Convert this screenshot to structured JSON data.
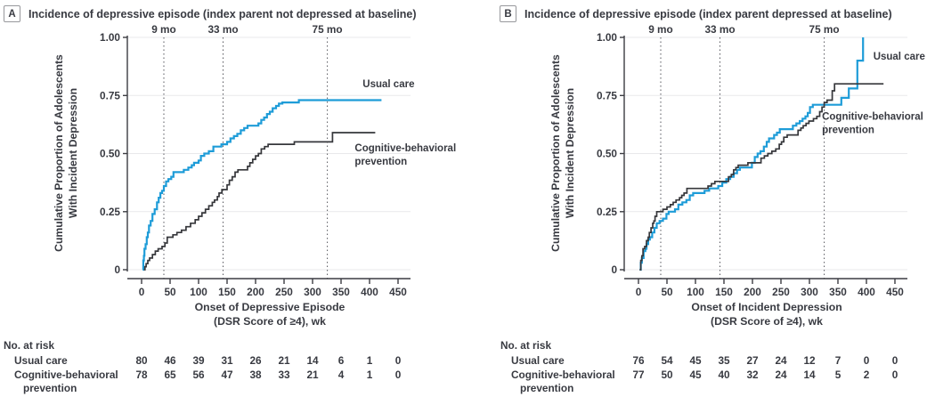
{
  "figure": {
    "text_color": "#383a41",
    "axis_color": "#3b3c42",
    "grid_color": "#e9e9eb",
    "milestone_line_color": "#55565c",
    "usual_care_color": "#1e9cd8",
    "prevention_color": "#36373b"
  },
  "chart_data": [
    {
      "type": "line",
      "panel_label": "A",
      "title": "Incidence of depressive episode (index parent not depressed at baseline)",
      "ylabel_lines": [
        "Cumulative Proportion of Adolescents",
        "With Incident Depression"
      ],
      "xlabel_lines": [
        "Onset of Depressive Episode",
        "(DSR Score of ≥4), wk"
      ],
      "xlim": [
        0,
        450
      ],
      "ylim": [
        0,
        1.0
      ],
      "grid": true,
      "legend_position": "inline-right",
      "xticks": [
        0,
        50,
        100,
        150,
        200,
        250,
        300,
        350,
        400,
        450
      ],
      "ytick_values": [
        0,
        0.25,
        0.5,
        0.75,
        1.0
      ],
      "ytick_labels": [
        "0",
        "0.25",
        "0.50",
        "0.75",
        "1.00"
      ],
      "milestones": [
        {
          "label": "9 mo",
          "week": 39
        },
        {
          "label": "33 mo",
          "week": 143
        },
        {
          "label": "75 mo",
          "week": 326
        }
      ],
      "series": [
        {
          "name": "Usual care",
          "color": "#1e9cd8",
          "label_lines": [
            "Usual care"
          ],
          "label_anchor": {
            "week": 388,
            "prop": 0.785
          },
          "steps": [
            [
              2,
              0
            ],
            [
              3,
              0.04
            ],
            [
              4,
              0.06
            ],
            [
              5,
              0.09
            ],
            [
              7,
              0.11
            ],
            [
              9,
              0.14
            ],
            [
              11,
              0.16
            ],
            [
              13,
              0.19
            ],
            [
              16,
              0.21
            ],
            [
              19,
              0.24
            ],
            [
              23,
              0.26
            ],
            [
              27,
              0.29
            ],
            [
              30,
              0.31
            ],
            [
              33,
              0.33
            ],
            [
              36,
              0.34
            ],
            [
              39,
              0.36
            ],
            [
              43,
              0.38
            ],
            [
              47,
              0.39
            ],
            [
              52,
              0.4
            ],
            [
              56,
              0.42
            ],
            [
              74,
              0.43
            ],
            [
              82,
              0.44
            ],
            [
              88,
              0.45
            ],
            [
              92,
              0.46
            ],
            [
              100,
              0.47
            ],
            [
              104,
              0.49
            ],
            [
              110,
              0.5
            ],
            [
              118,
              0.51
            ],
            [
              126,
              0.53
            ],
            [
              140,
              0.54
            ],
            [
              150,
              0.55
            ],
            [
              156,
              0.565
            ],
            [
              162,
              0.575
            ],
            [
              168,
              0.585
            ],
            [
              174,
              0.6
            ],
            [
              180,
              0.61
            ],
            [
              186,
              0.62
            ],
            [
              205,
              0.63
            ],
            [
              210,
              0.645
            ],
            [
              215,
              0.655
            ],
            [
              220,
              0.67
            ],
            [
              225,
              0.68
            ],
            [
              230,
              0.695
            ],
            [
              236,
              0.705
            ],
            [
              241,
              0.715
            ],
            [
              247,
              0.72
            ],
            [
              276,
              0.73
            ],
            [
              421,
              0.73
            ]
          ]
        },
        {
          "name": "Cognitive-behavioral prevention",
          "color": "#36373b",
          "label_lines": [
            "Cognitive-behavioral",
            "prevention"
          ],
          "label_anchor": {
            "week": 374,
            "prop": 0.51
          },
          "steps": [
            [
              4,
              0
            ],
            [
              6,
              0.013
            ],
            [
              8,
              0.026
            ],
            [
              11,
              0.04
            ],
            [
              14,
              0.05
            ],
            [
              19,
              0.065
            ],
            [
              24,
              0.08
            ],
            [
              29,
              0.09
            ],
            [
              36,
              0.1
            ],
            [
              41,
              0.115
            ],
            [
              45,
              0.14
            ],
            [
              55,
              0.15
            ],
            [
              62,
              0.16
            ],
            [
              70,
              0.17
            ],
            [
              78,
              0.185
            ],
            [
              86,
              0.2
            ],
            [
              94,
              0.215
            ],
            [
              100,
              0.23
            ],
            [
              106,
              0.245
            ],
            [
              112,
              0.26
            ],
            [
              118,
              0.275
            ],
            [
              124,
              0.29
            ],
            [
              128,
              0.3
            ],
            [
              133,
              0.315
            ],
            [
              136,
              0.33
            ],
            [
              141,
              0.345
            ],
            [
              150,
              0.365
            ],
            [
              154,
              0.385
            ],
            [
              159,
              0.4
            ],
            [
              164,
              0.42
            ],
            [
              169,
              0.43
            ],
            [
              186,
              0.445
            ],
            [
              190,
              0.46
            ],
            [
              195,
              0.475
            ],
            [
              200,
              0.49
            ],
            [
              205,
              0.5
            ],
            [
              210,
              0.52
            ],
            [
              216,
              0.53
            ],
            [
              222,
              0.54
            ],
            [
              268,
              0.55
            ],
            [
              335,
              0.59
            ],
            [
              410,
              0.59
            ]
          ]
        }
      ],
      "at_risk": {
        "header": "No. at risk",
        "rows": [
          {
            "label_lines": [
              "Usual care"
            ],
            "values": [
              80,
              46,
              39,
              31,
              26,
              21,
              14,
              6,
              1,
              0
            ]
          },
          {
            "label_lines": [
              "Cognitive-behavioral",
              "prevention"
            ],
            "values": [
              78,
              65,
              56,
              47,
              38,
              33,
              21,
              4,
              1,
              0
            ]
          }
        ]
      }
    },
    {
      "type": "line",
      "panel_label": "B",
      "title": "Incidence of depressive episode (index parent depressed at baseline)",
      "ylabel_lines": [
        "Cumulative Proportion of Adolescents",
        "With Incident Depression"
      ],
      "xlabel_lines": [
        "Onset of Incident Depression",
        "(DSR Score of ≥4), wk"
      ],
      "xlim": [
        0,
        450
      ],
      "ylim": [
        0,
        1.0
      ],
      "grid": true,
      "legend_position": "inline-right",
      "xticks": [
        0,
        50,
        100,
        150,
        200,
        250,
        300,
        350,
        400,
        450
      ],
      "ytick_values": [
        0,
        0.25,
        0.5,
        0.75,
        1.0
      ],
      "ytick_labels": [
        "0",
        "0.25",
        "0.50",
        "0.75",
        "1.00"
      ],
      "milestones": [
        {
          "label": "9 mo",
          "week": 39
        },
        {
          "label": "33 mo",
          "week": 143
        },
        {
          "label": "75 mo",
          "week": 326
        }
      ],
      "series": [
        {
          "name": "Usual care",
          "color": "#1e9cd8",
          "label_lines": [
            "Usual care"
          ],
          "label_anchor": {
            "week": 412,
            "prop": 0.905
          },
          "steps": [
            [
              2,
              0
            ],
            [
              4,
              0.03
            ],
            [
              6,
              0.05
            ],
            [
              9,
              0.08
            ],
            [
              12,
              0.09
            ],
            [
              14,
              0.11
            ],
            [
              17,
              0.13
            ],
            [
              20,
              0.14
            ],
            [
              24,
              0.16
            ],
            [
              28,
              0.18
            ],
            [
              32,
              0.2
            ],
            [
              37,
              0.21
            ],
            [
              43,
              0.22
            ],
            [
              49,
              0.24
            ],
            [
              53,
              0.25
            ],
            [
              64,
              0.26
            ],
            [
              70,
              0.28
            ],
            [
              77,
              0.29
            ],
            [
              84,
              0.3
            ],
            [
              90,
              0.32
            ],
            [
              96,
              0.33
            ],
            [
              116,
              0.34
            ],
            [
              124,
              0.35
            ],
            [
              140,
              0.36
            ],
            [
              147,
              0.375
            ],
            [
              154,
              0.39
            ],
            [
              161,
              0.4
            ],
            [
              167,
              0.415
            ],
            [
              173,
              0.43
            ],
            [
              178,
              0.44
            ],
            [
              199,
              0.46
            ],
            [
              204,
              0.485
            ],
            [
              209,
              0.5
            ],
            [
              214,
              0.51
            ],
            [
              220,
              0.53
            ],
            [
              225,
              0.55
            ],
            [
              229,
              0.565
            ],
            [
              238,
              0.58
            ],
            [
              243,
              0.59
            ],
            [
              248,
              0.605
            ],
            [
              271,
              0.62
            ],
            [
              277,
              0.63
            ],
            [
              283,
              0.64
            ],
            [
              288,
              0.65
            ],
            [
              293,
              0.66
            ],
            [
              297,
              0.675
            ],
            [
              301,
              0.7
            ],
            [
              306,
              0.71
            ],
            [
              356,
              0.74
            ],
            [
              369,
              0.78
            ],
            [
              384,
              0.9
            ],
            [
              394,
              1.0
            ]
          ]
        },
        {
          "name": "Cognitive-behavioral prevention",
          "color": "#36373b",
          "label_lines": [
            "Cognitive-behavioral",
            "prevention"
          ],
          "label_anchor": {
            "week": 322,
            "prop": 0.645
          },
          "steps": [
            [
              2,
              0
            ],
            [
              4,
              0.04
            ],
            [
              6,
              0.06
            ],
            [
              8,
              0.09
            ],
            [
              11,
              0.1
            ],
            [
              14,
              0.125
            ],
            [
              17,
              0.14
            ],
            [
              19,
              0.16
            ],
            [
              22,
              0.18
            ],
            [
              25,
              0.2
            ],
            [
              27,
              0.21
            ],
            [
              29,
              0.23
            ],
            [
              32,
              0.25
            ],
            [
              43,
              0.26
            ],
            [
              50,
              0.27
            ],
            [
              56,
              0.28
            ],
            [
              61,
              0.29
            ],
            [
              66,
              0.3
            ],
            [
              72,
              0.31
            ],
            [
              76,
              0.32
            ],
            [
              80,
              0.33
            ],
            [
              85,
              0.35
            ],
            [
              122,
              0.36
            ],
            [
              128,
              0.37
            ],
            [
              134,
              0.38
            ],
            [
              158,
              0.4
            ],
            [
              163,
              0.41
            ],
            [
              167,
              0.43
            ],
            [
              171,
              0.44
            ],
            [
              175,
              0.45
            ],
            [
              192,
              0.46
            ],
            [
              215,
              0.48
            ],
            [
              221,
              0.49
            ],
            [
              227,
              0.5
            ],
            [
              234,
              0.51
            ],
            [
              241,
              0.52
            ],
            [
              247,
              0.54
            ],
            [
              251,
              0.55
            ],
            [
              255,
              0.57
            ],
            [
              261,
              0.58
            ],
            [
              280,
              0.6
            ],
            [
              285,
              0.61
            ],
            [
              289,
              0.62
            ],
            [
              294,
              0.63
            ],
            [
              299,
              0.64
            ],
            [
              307,
              0.65
            ],
            [
              313,
              0.66
            ],
            [
              318,
              0.68
            ],
            [
              322,
              0.7
            ],
            [
              326,
              0.72
            ],
            [
              331,
              0.73
            ],
            [
              340,
              0.77
            ],
            [
              344,
              0.8
            ],
            [
              430,
              0.8
            ]
          ]
        }
      ],
      "at_risk": {
        "header": "No. at risk",
        "rows": [
          {
            "label_lines": [
              "Usual care"
            ],
            "values": [
              76,
              54,
              45,
              35,
              27,
              24,
              12,
              7,
              0,
              0
            ]
          },
          {
            "label_lines": [
              "Cognitive-behavioral",
              "prevention"
            ],
            "values": [
              77,
              50,
              45,
              40,
              32,
              24,
              14,
              5,
              2,
              0
            ]
          }
        ]
      }
    }
  ]
}
